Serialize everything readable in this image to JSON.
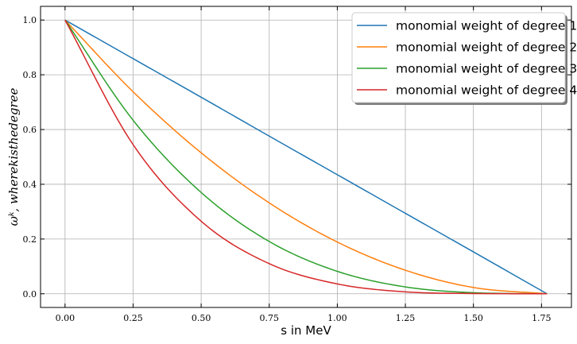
{
  "chart_data": {
    "type": "line",
    "xlabel": "s in MeV",
    "ylabel": "ω^k, where k is the degree",
    "ylabel_rendered": "ωᵏ, wherekisthedegree",
    "xlim": [
      -0.09,
      1.86
    ],
    "ylim": [
      -0.05,
      1.05
    ],
    "xticks": [
      0.0,
      0.25,
      0.5,
      0.75,
      1.0,
      1.25,
      1.5,
      1.75
    ],
    "xtick_labels": [
      "0.00",
      "0.25",
      "0.50",
      "0.75",
      "1.00",
      "1.25",
      "1.50",
      "1.75"
    ],
    "yticks": [
      0.0,
      0.2,
      0.4,
      0.6,
      0.8,
      1.0
    ],
    "ytick_labels": [
      "0.0",
      "0.2",
      "0.4",
      "0.6",
      "0.8",
      "1.0"
    ],
    "grid": true,
    "legend_position": "top-right",
    "x": [
      0.0,
      0.25,
      0.5,
      0.75,
      1.0,
      1.25,
      1.5,
      1.77
    ],
    "series": [
      {
        "name": "monomial weight of degree 1",
        "color": "#1f77b4",
        "values": [
          1.0,
          0.859,
          0.718,
          0.576,
          0.435,
          0.294,
          0.153,
          0.0
        ]
      },
      {
        "name": "monomial weight of degree 2",
        "color": "#ff7f0e",
        "values": [
          1.0,
          0.738,
          0.515,
          0.332,
          0.189,
          0.086,
          0.023,
          0.0
        ]
      },
      {
        "name": "monomial weight of degree 3",
        "color": "#2ca02c",
        "values": [
          1.0,
          0.634,
          0.37,
          0.191,
          0.082,
          0.025,
          0.004,
          0.0
        ]
      },
      {
        "name": "monomial weight of degree 4",
        "color": "#d62728",
        "values": [
          1.0,
          0.545,
          0.265,
          0.11,
          0.036,
          0.007,
          0.001,
          0.0
        ]
      }
    ]
  }
}
